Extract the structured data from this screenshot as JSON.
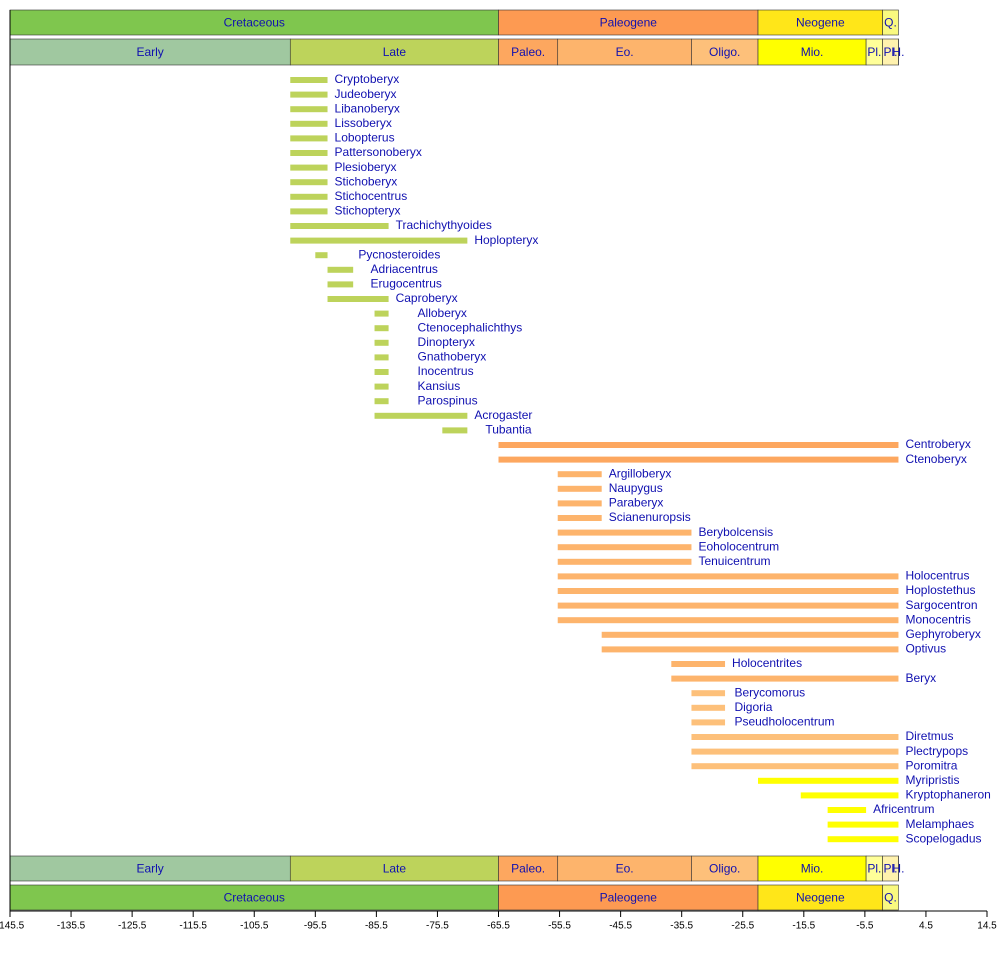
{
  "chart_data": {
    "type": "timeline",
    "xlim": [
      -145.5,
      14.5
    ],
    "xticks": [
      -145.5,
      -135.5,
      -125.5,
      -115.5,
      -105.5,
      -95.5,
      -85.5,
      -75.5,
      -65.5,
      -55.5,
      -45.5,
      -35.5,
      -25.5,
      -15.5,
      -5.5,
      4.5,
      14.5
    ],
    "periods": [
      {
        "name": "Cretaceous",
        "start": -145.5,
        "end": -65.5,
        "color": "#7fc64e"
      },
      {
        "name": "Paleogene",
        "start": -65.5,
        "end": -23,
        "color": "#fd9a52"
      },
      {
        "name": "Neogene",
        "start": -23,
        "end": -2.6,
        "color": "#ffe619"
      },
      {
        "name": "Q.",
        "start": -2.6,
        "end": 0,
        "color": "#f9f97f"
      }
    ],
    "epochs": [
      {
        "name": "Early",
        "start": -145.5,
        "end": -99.6,
        "color": "#a0c8a0"
      },
      {
        "name": "Late",
        "start": -99.6,
        "end": -65.5,
        "color": "#bdd35b"
      },
      {
        "name": "Paleo.",
        "start": -65.5,
        "end": -55.8,
        "color": "#fda75f"
      },
      {
        "name": "Eo.",
        "start": -55.8,
        "end": -33.9,
        "color": "#fdb46c"
      },
      {
        "name": "Oligo.",
        "start": -33.9,
        "end": -23,
        "color": "#fdc07a"
      },
      {
        "name": "Mio.",
        "start": -23,
        "end": -5.3,
        "color": "#ffff00"
      },
      {
        "name": "Pl.",
        "start": -5.3,
        "end": -2.6,
        "color": "#ffff99"
      },
      {
        "name": "Pl.",
        "start": -2.6,
        "end": -0.0117,
        "color": "#fff2ae"
      },
      {
        "name": "H.",
        "start": -0.0117,
        "end": 0,
        "color": "#fef2e0"
      }
    ],
    "series": [
      {
        "color": "#bdd35b",
        "items": [
          {
            "name": "Cryptoberyx",
            "start": -99.6,
            "end": -93.5
          },
          {
            "name": "Judeoberyx",
            "start": -99.6,
            "end": -93.5
          },
          {
            "name": "Libanoberyx",
            "start": -99.6,
            "end": -93.5
          },
          {
            "name": "Lissoberyx",
            "start": -99.6,
            "end": -93.5
          },
          {
            "name": "Lobopterus",
            "start": -99.6,
            "end": -93.5
          },
          {
            "name": "Pattersonoberyx",
            "start": -99.6,
            "end": -93.5
          },
          {
            "name": "Plesioberyx",
            "start": -99.6,
            "end": -93.5
          },
          {
            "name": "Stichoberyx",
            "start": -99.6,
            "end": -93.5
          },
          {
            "name": "Stichocentrus",
            "start": -99.6,
            "end": -93.5
          },
          {
            "name": "Stichopteryx",
            "start": -99.6,
            "end": -93.5
          },
          {
            "name": "Trachichythyoides",
            "start": -99.6,
            "end": -83.5
          },
          {
            "name": "Hoplopteryx",
            "start": -99.6,
            "end": -70.6
          },
          {
            "name": "Pycnosteroides",
            "start": -95.5,
            "end": -93.5
          },
          {
            "name": "Adriacentrus",
            "start": -93.5,
            "end": -89.3
          },
          {
            "name": "Erugocentrus",
            "start": -93.5,
            "end": -89.3
          },
          {
            "name": "Caproberyx",
            "start": -93.5,
            "end": -83.5
          },
          {
            "name": "Alloberyx",
            "start": -85.8,
            "end": -83.5
          },
          {
            "name": "Ctenocephalichthys",
            "start": -85.8,
            "end": -83.5
          },
          {
            "name": "Dinopteryx",
            "start": -85.8,
            "end": -83.5
          },
          {
            "name": "Gnathoberyx",
            "start": -85.8,
            "end": -83.5
          },
          {
            "name": "Inocentrus",
            "start": -85.8,
            "end": -83.5
          },
          {
            "name": "Kansius",
            "start": -85.8,
            "end": -83.5
          },
          {
            "name": "Parospinus",
            "start": -85.8,
            "end": -83.5
          },
          {
            "name": "Acrogaster",
            "start": -85.8,
            "end": -70.6
          },
          {
            "name": "Tubantia",
            "start": -74.7,
            "end": -70.6
          }
        ]
      },
      {
        "color": "#fda75f",
        "items": [
          {
            "name": "Centroberyx",
            "start": -65.5,
            "end": 0
          },
          {
            "name": "Ctenoberyx",
            "start": -65.5,
            "end": 0
          }
        ]
      },
      {
        "color": "#fdb46c",
        "items": [
          {
            "name": "Argilloberyx",
            "start": -55.8,
            "end": -48.6
          },
          {
            "name": "Naupygus",
            "start": -55.8,
            "end": -48.6
          },
          {
            "name": "Paraberyx",
            "start": -55.8,
            "end": -48.6
          },
          {
            "name": "Scianenuropsis",
            "start": -55.8,
            "end": -48.6
          },
          {
            "name": "Berybolcensis",
            "start": -55.8,
            "end": -33.9
          },
          {
            "name": "Eoholocentrum",
            "start": -55.8,
            "end": -33.9
          },
          {
            "name": "Tenuicentrum",
            "start": -55.8,
            "end": -33.9
          },
          {
            "name": "Holocentrus",
            "start": -55.8,
            "end": 0
          },
          {
            "name": "Hoplostethus",
            "start": -55.8,
            "end": 0
          },
          {
            "name": "Sargocentron",
            "start": -55.8,
            "end": 0
          },
          {
            "name": "Monocentris",
            "start": -55.8,
            "end": 0
          },
          {
            "name": "Gephyroberyx",
            "start": -48.6,
            "end": 0
          },
          {
            "name": "Optivus",
            "start": -48.6,
            "end": 0
          },
          {
            "name": "Holocentrites",
            "start": -37.2,
            "end": -28.4
          },
          {
            "name": "Beryx",
            "start": -37.2,
            "end": 0
          }
        ]
      },
      {
        "color": "#fdc07a",
        "items": [
          {
            "name": "Berycomorus",
            "start": -33.9,
            "end": -28.4
          },
          {
            "name": "Digoria",
            "start": -33.9,
            "end": -28.4
          },
          {
            "name": "Pseudholocentrum",
            "start": -33.9,
            "end": -28.4
          },
          {
            "name": "Diretmus",
            "start": -33.9,
            "end": 0
          },
          {
            "name": "Plectrypops",
            "start": -33.9,
            "end": 0
          },
          {
            "name": "Poromitra",
            "start": -33.9,
            "end": 0
          }
        ]
      },
      {
        "color": "#ffff00",
        "items": [
          {
            "name": "Myripristis",
            "start": -23,
            "end": 0
          },
          {
            "name": "Kryptophaneron",
            "start": -16,
            "end": 0
          },
          {
            "name": "Africentrum",
            "start": -11.6,
            "end": -5.3
          },
          {
            "name": "Melamphaes",
            "start": -11.6,
            "end": 0
          },
          {
            "name": "Scopelogadus",
            "start": -11.6,
            "end": 0
          }
        ]
      }
    ]
  }
}
